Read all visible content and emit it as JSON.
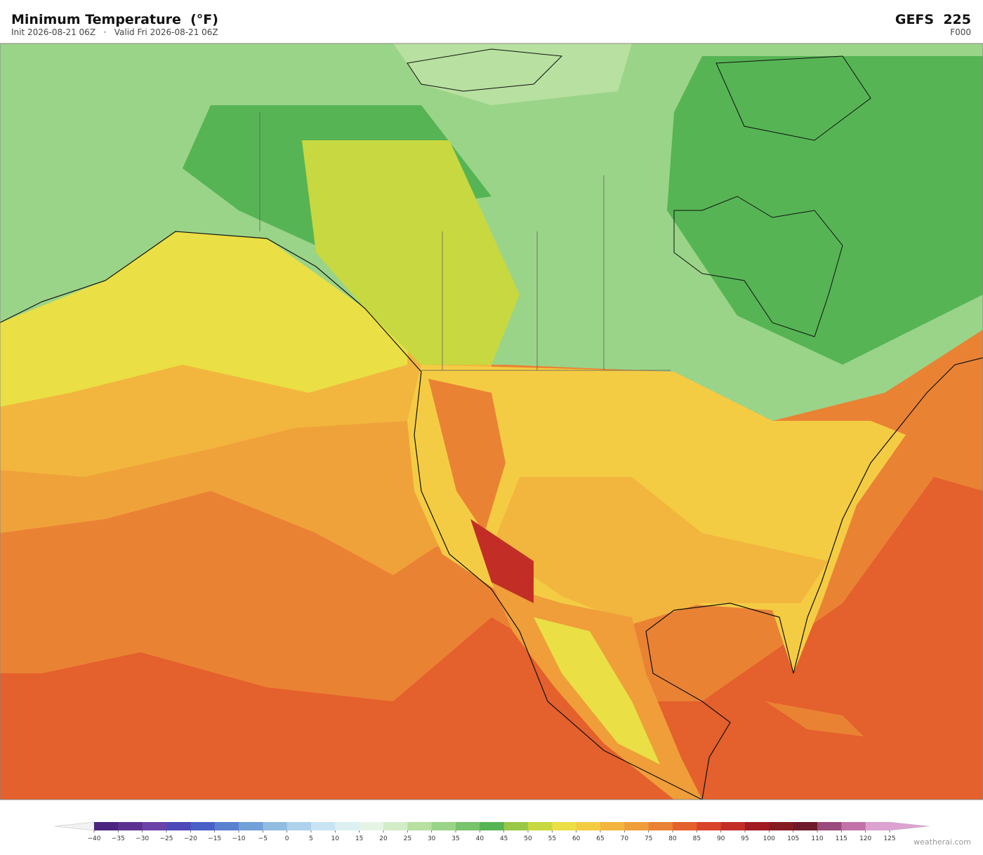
{
  "header": {
    "title": "Minimum Temperature  (°F)",
    "subtitle": "Init 2026-08-21 06Z   ·   Valid Fri 2026-08-21 06Z",
    "model": "GEFS  225",
    "forecast_hour": "F000"
  },
  "colorbar": {
    "ticks": [
      {
        "value": -40,
        "label": "−40"
      },
      {
        "value": -35,
        "label": "−35"
      },
      {
        "value": -30,
        "label": "−30"
      },
      {
        "value": -25,
        "label": "−25"
      },
      {
        "value": -20,
        "label": "−20"
      },
      {
        "value": -15,
        "label": "−15"
      },
      {
        "value": -10,
        "label": "−10"
      },
      {
        "value": -5,
        "label": "−5"
      },
      0,
      5,
      10,
      15,
      20,
      25,
      30,
      35,
      40,
      45,
      50,
      55,
      60,
      65,
      70,
      75,
      80,
      85,
      90,
      95,
      100,
      105,
      110,
      115,
      120,
      125
    ],
    "colors": [
      "#4a2480",
      "#5c3290",
      "#6a42a8",
      "#4e48b8",
      "#4a60c8",
      "#5a80d0",
      "#72a0d8",
      "#90bce2",
      "#aed2ec",
      "#c8e4f2",
      "#dcf0f2",
      "#e6f4e6",
      "#d2ecc8",
      "#b8e0a0",
      "#9ad488",
      "#78c46a",
      "#56b454",
      "#98c846",
      "#c8d840",
      "#eadf44",
      "#f4cc44",
      "#f2b63e",
      "#ef9e3a",
      "#ea8234",
      "#e4602c",
      "#d8442a",
      "#c22e26",
      "#a01c22",
      "#841a22",
      "#6e1a2a",
      "#9a4a7c",
      "#c272a8",
      "#dca2d2"
    ]
  },
  "footer": {
    "credit": "weatherai.com"
  }
}
